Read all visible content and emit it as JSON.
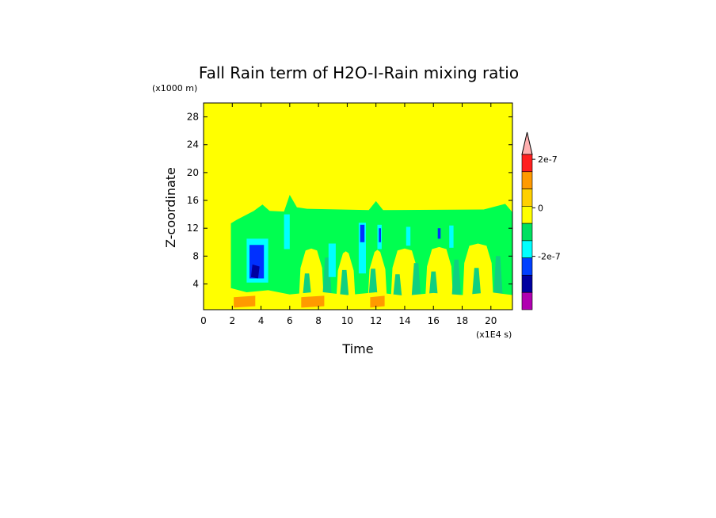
{
  "chart_data": {
    "type": "heatmap",
    "title": "Fall Rain term of H2O-I-Rain mixing ratio",
    "xlabel": "Time",
    "ylabel": "Z-coordinate",
    "x_unit_note": "(x1E4 s)",
    "y_unit_note": "(x1000 m)",
    "xlim": [
      0,
      21.5
    ],
    "ylim": [
      0.3,
      30
    ],
    "x_ticks": [
      0,
      2,
      4,
      6,
      8,
      10,
      12,
      14,
      16,
      18,
      20
    ],
    "y_ticks": [
      4,
      8,
      12,
      16,
      20,
      24,
      28
    ],
    "colorbar": {
      "labels": [
        {
          "text": "2e-7",
          "value": 2e-07
        },
        {
          "text": "0",
          "value": 0
        },
        {
          "text": "-2e-7",
          "value": -2e-07
        }
      ],
      "levels": [
        {
          "color": "#ffb0b0"
        },
        {
          "color": "#ff2020"
        },
        {
          "color": "#ff9a00"
        },
        {
          "color": "#ffd000"
        },
        {
          "color": "#ffff00"
        },
        {
          "color": "#00e060"
        },
        {
          "color": "#00ffff"
        },
        {
          "color": "#0040ff"
        },
        {
          "color": "#0000a0"
        },
        {
          "color": "#b000b0"
        }
      ]
    },
    "colors": {
      "background": "#ffff00",
      "band": "#00ff50",
      "mid": "#10d080",
      "light": "#00ffff",
      "blue": "#0030ff",
      "dark": "#0000a0",
      "orange": "#ff9a00"
    }
  }
}
